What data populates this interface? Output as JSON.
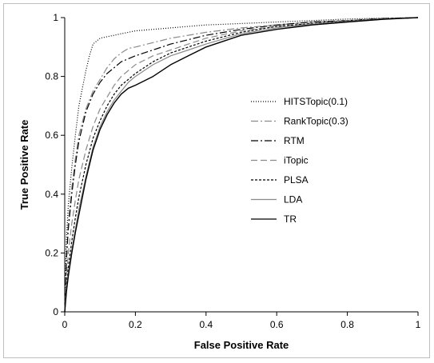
{
  "chart_data": {
    "type": "line",
    "title": "",
    "xlabel": "False Positive Rate",
    "ylabel": "True Positive Rate",
    "xlim": [
      0,
      1
    ],
    "ylim": [
      0,
      1
    ],
    "xticks": [
      "0",
      "0.2",
      "0.4",
      "0.6",
      "0.8",
      "1"
    ],
    "yticks": [
      "0",
      "0.2",
      "0.4",
      "0.6",
      "0.8",
      "1"
    ],
    "grid": false,
    "legend_position": "right",
    "series": [
      {
        "name": "HITSTopic(0.1)",
        "color": "#000000",
        "dash": "dotted",
        "x": [
          0,
          0.005,
          0.01,
          0.02,
          0.03,
          0.04,
          0.05,
          0.06,
          0.07,
          0.08,
          0.09,
          0.1,
          0.12,
          0.14,
          0.16,
          0.2,
          0.25,
          0.3,
          0.35,
          0.4,
          0.5,
          0.6,
          0.7,
          0.8,
          0.9,
          1.0
        ],
        "y": [
          0,
          0.25,
          0.36,
          0.49,
          0.6,
          0.7,
          0.76,
          0.82,
          0.87,
          0.91,
          0.92,
          0.93,
          0.935,
          0.94,
          0.945,
          0.955,
          0.96,
          0.965,
          0.97,
          0.975,
          0.98,
          0.985,
          0.99,
          0.995,
          0.998,
          1.0
        ]
      },
      {
        "name": "RankTopic(0.3)",
        "color": "#8a8a8a",
        "dash": "dashdot",
        "x": [
          0,
          0.005,
          0.01,
          0.02,
          0.03,
          0.04,
          0.06,
          0.08,
          0.1,
          0.12,
          0.14,
          0.16,
          0.18,
          0.2,
          0.25,
          0.3,
          0.35,
          0.4,
          0.5,
          0.6,
          0.7,
          0.8,
          0.9,
          1.0
        ],
        "y": [
          0,
          0.2,
          0.3,
          0.42,
          0.52,
          0.6,
          0.69,
          0.75,
          0.79,
          0.83,
          0.86,
          0.88,
          0.895,
          0.9,
          0.915,
          0.93,
          0.94,
          0.95,
          0.965,
          0.975,
          0.985,
          0.99,
          0.997,
          1.0
        ]
      },
      {
        "name": "RTM",
        "color": "#000000",
        "dash": "dashdot",
        "x": [
          0,
          0.005,
          0.01,
          0.02,
          0.03,
          0.04,
          0.06,
          0.08,
          0.1,
          0.12,
          0.14,
          0.16,
          0.18,
          0.2,
          0.25,
          0.3,
          0.35,
          0.4,
          0.5,
          0.6,
          0.7,
          0.8,
          0.9,
          1.0
        ],
        "y": [
          0,
          0.18,
          0.28,
          0.4,
          0.5,
          0.58,
          0.68,
          0.74,
          0.78,
          0.81,
          0.83,
          0.85,
          0.86,
          0.87,
          0.89,
          0.91,
          0.925,
          0.94,
          0.96,
          0.975,
          0.985,
          0.99,
          0.997,
          1.0
        ]
      },
      {
        "name": "iTopic",
        "color": "#8a8a8a",
        "dash": "dashed",
        "x": [
          0,
          0.005,
          0.01,
          0.02,
          0.03,
          0.04,
          0.06,
          0.08,
          0.1,
          0.12,
          0.14,
          0.16,
          0.18,
          0.2,
          0.25,
          0.3,
          0.35,
          0.4,
          0.5,
          0.6,
          0.7,
          0.8,
          0.9,
          1.0
        ],
        "y": [
          0,
          0.12,
          0.2,
          0.3,
          0.38,
          0.45,
          0.55,
          0.63,
          0.69,
          0.73,
          0.77,
          0.8,
          0.82,
          0.84,
          0.87,
          0.89,
          0.91,
          0.93,
          0.955,
          0.97,
          0.98,
          0.99,
          0.996,
          1.0
        ]
      },
      {
        "name": "PLSA",
        "color": "#000000",
        "dash": "shortdash",
        "x": [
          0,
          0.005,
          0.01,
          0.02,
          0.03,
          0.04,
          0.06,
          0.08,
          0.1,
          0.12,
          0.14,
          0.16,
          0.18,
          0.2,
          0.25,
          0.3,
          0.35,
          0.4,
          0.5,
          0.6,
          0.7,
          0.8,
          0.9,
          1.0
        ],
        "y": [
          0,
          0.09,
          0.15,
          0.24,
          0.32,
          0.39,
          0.5,
          0.59,
          0.65,
          0.7,
          0.74,
          0.77,
          0.79,
          0.81,
          0.85,
          0.88,
          0.9,
          0.92,
          0.95,
          0.97,
          0.98,
          0.988,
          0.996,
          1.0
        ]
      },
      {
        "name": "LDA",
        "color": "#8a8a8a",
        "dash": "solid",
        "x": [
          0,
          0.005,
          0.01,
          0.02,
          0.03,
          0.04,
          0.06,
          0.08,
          0.1,
          0.12,
          0.14,
          0.16,
          0.18,
          0.2,
          0.25,
          0.3,
          0.35,
          0.4,
          0.5,
          0.6,
          0.7,
          0.8,
          0.9,
          1.0
        ],
        "y": [
          0,
          0.08,
          0.13,
          0.21,
          0.28,
          0.35,
          0.46,
          0.56,
          0.63,
          0.68,
          0.72,
          0.75,
          0.78,
          0.8,
          0.84,
          0.87,
          0.89,
          0.91,
          0.945,
          0.965,
          0.978,
          0.987,
          0.995,
          1.0
        ]
      },
      {
        "name": "TR",
        "color": "#000000",
        "dash": "solid",
        "x": [
          0,
          0.005,
          0.01,
          0.02,
          0.03,
          0.04,
          0.06,
          0.08,
          0.1,
          0.12,
          0.14,
          0.16,
          0.18,
          0.2,
          0.25,
          0.3,
          0.35,
          0.4,
          0.5,
          0.6,
          0.7,
          0.8,
          0.9,
          1.0
        ],
        "y": [
          0,
          0.07,
          0.12,
          0.2,
          0.27,
          0.33,
          0.45,
          0.55,
          0.62,
          0.67,
          0.71,
          0.74,
          0.76,
          0.77,
          0.8,
          0.84,
          0.87,
          0.9,
          0.94,
          0.96,
          0.975,
          0.985,
          0.994,
          1.0
        ]
      }
    ]
  }
}
